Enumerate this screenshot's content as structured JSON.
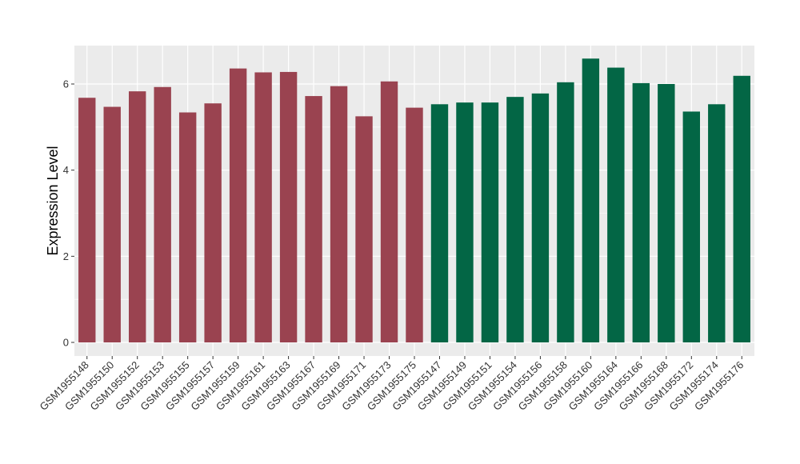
{
  "chart_data": {
    "type": "bar",
    "title": "",
    "xlabel": "",
    "ylabel": "Expression Level",
    "ylim": [
      0,
      6.88
    ],
    "yticks": [
      0,
      2,
      4,
      6
    ],
    "grid": true,
    "background": "#EBEBEB",
    "gridline_color": "#FFFFFF",
    "categories": [
      "GSM1955148",
      "GSM1955150",
      "GSM1955152",
      "GSM1955153",
      "GSM1955155",
      "GSM1955157",
      "GSM1955159",
      "GSM1955161",
      "GSM1955163",
      "GSM1955167",
      "GSM1955169",
      "GSM1955171",
      "GSM1955173",
      "GSM1955175",
      "GSM1955147",
      "GSM1955149",
      "GSM1955151",
      "GSM1955154",
      "GSM1955156",
      "GSM1955158",
      "GSM1955160",
      "GSM1955164",
      "GSM1955166",
      "GSM1955168",
      "GSM1955172",
      "GSM1955174",
      "GSM1955176"
    ],
    "values": [
      5.68,
      5.47,
      5.83,
      5.93,
      5.34,
      5.55,
      6.36,
      6.27,
      6.28,
      5.72,
      5.95,
      5.25,
      6.06,
      5.45,
      5.53,
      5.57,
      5.57,
      5.7,
      5.78,
      6.04,
      6.59,
      6.38,
      6.02,
      6.0,
      5.36,
      5.53,
      6.19
    ],
    "group_sizes": [
      14,
      13
    ],
    "colors": [
      "#9A4350",
      "#036645"
    ]
  }
}
